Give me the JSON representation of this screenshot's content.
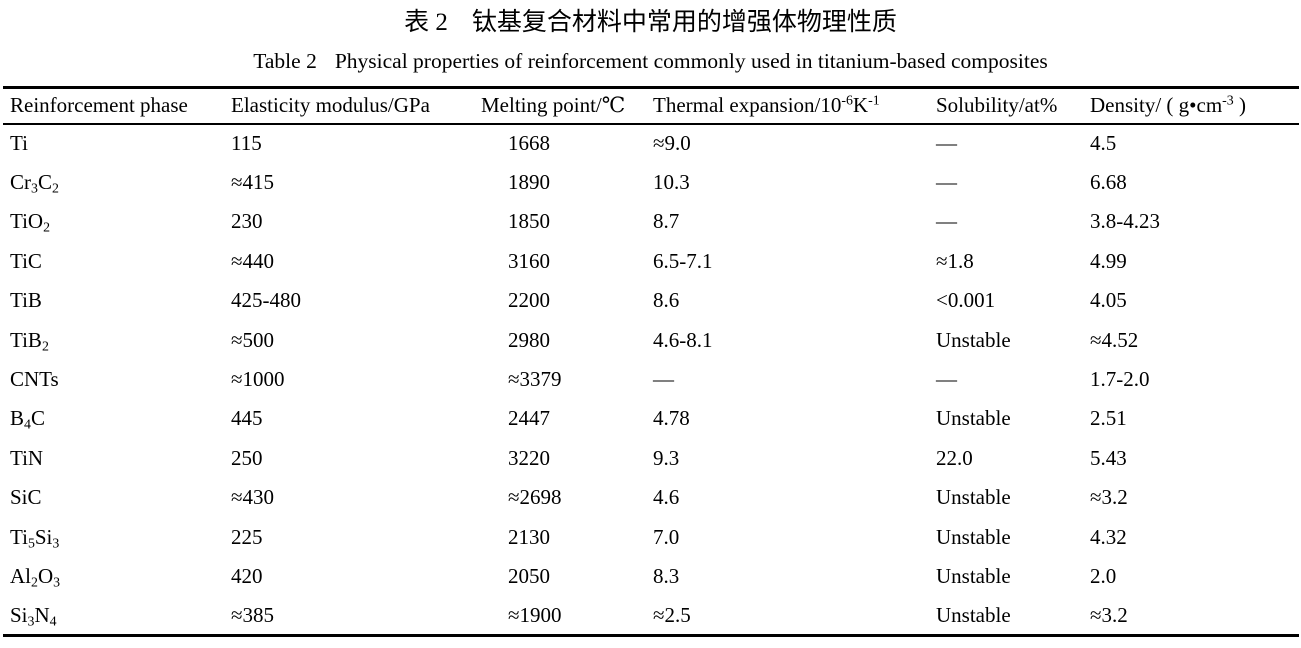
{
  "page": {
    "background": "#ffffff",
    "text_color": "#000000"
  },
  "caption": {
    "zh_label": "表 2",
    "zh_title": "钛基复合材料中常用的增强体物理性质",
    "en_label": "Table 2",
    "en_title": "Physical properties of reinforcement commonly used in titanium-based composites"
  },
  "table": {
    "columns": [
      {
        "key": "phase",
        "label": "Reinforcement phase"
      },
      {
        "key": "elasticity",
        "label": "Elasticity modulus/GPa"
      },
      {
        "key": "melting",
        "label": "Melting point/℃"
      },
      {
        "key": "thermal",
        "label": "Thermal expansion/10^{-6}K^{-1}"
      },
      {
        "key": "solubility",
        "label": "Solubility/at%"
      },
      {
        "key": "density",
        "label": "Density/ ( g•cm^{-3} )"
      }
    ],
    "rows": [
      [
        "Ti",
        "115",
        "1668",
        "≈9.0",
        "—",
        "4.5"
      ],
      [
        "Cr_{3}C_{2}",
        "≈415",
        "1890",
        "10.3",
        "—",
        "6.68"
      ],
      [
        "TiO_{2}",
        "230",
        "1850",
        "8.7",
        "—",
        "3.8-4.23"
      ],
      [
        "TiC",
        "≈440",
        "3160",
        "6.5-7.1",
        "≈1.8",
        "4.99"
      ],
      [
        "TiB",
        "425-480",
        "2200",
        "8.6",
        "<0.001",
        "4.05"
      ],
      [
        "TiB_{2}",
        "≈500",
        "2980",
        "4.6-8.1",
        "Unstable",
        "≈4.52"
      ],
      [
        "CNTs",
        "≈1000",
        "≈3379",
        "—",
        "—",
        "1.7-2.0"
      ],
      [
        "B_{4}C",
        "445",
        "2447",
        "4.78",
        "Unstable",
        "2.51"
      ],
      [
        "TiN",
        "250",
        "3220",
        "9.3",
        "22.0",
        "5.43"
      ],
      [
        "SiC",
        "≈430",
        "≈2698",
        "4.6",
        "Unstable",
        "≈3.2"
      ],
      [
        "Ti_{5}Si_{3}",
        "225",
        "2130",
        "7.0",
        "Unstable",
        "4.32"
      ],
      [
        "Al_{2}O_{3}",
        "420",
        "2050",
        "8.3",
        "Unstable",
        "2.0"
      ],
      [
        "Si_{3}N_{4}",
        "≈385",
        "≈1900",
        "≈2.5",
        "Unstable",
        "≈3.2"
      ]
    ]
  }
}
